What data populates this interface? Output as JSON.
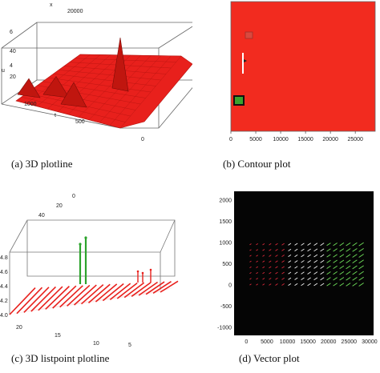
{
  "captions": {
    "a": "(a)  3D plotline",
    "b": "(b)  Contour plot",
    "c": "(c)  3D listpoint plotline",
    "d": "(d)  Vector plot"
  },
  "chart_data": [
    {
      "panel": "a",
      "type": "area",
      "tick_labels": {
        "back_axis": [
          "x",
          "20000"
        ],
        "vertical_axis": [
          "6",
          "4",
          "40",
          "20"
        ],
        "vertical_axis_label": "u",
        "depth_axis": [
          "1000",
          "500",
          "0"
        ],
        "depth_axis_label": "t",
        "right_axis": [
          "0"
        ]
      },
      "surface_color": "#e8201c",
      "peaks": [
        {
          "label": "left",
          "relative_height": 0.22
        },
        {
          "label": "middle-left",
          "relative_height": 0.25
        },
        {
          "label": "middle",
          "relative_height": 0.3
        },
        {
          "label": "tall-right",
          "relative_height": 0.7
        }
      ]
    },
    {
      "panel": "b",
      "type": "heatmap",
      "x_ticks": [
        0,
        5000,
        10000,
        15000,
        20000,
        25000
      ],
      "y_ticks": [],
      "xlim": [
        0,
        29000
      ],
      "background_color": "#f22b1f",
      "features": [
        {
          "kind": "small-square",
          "color": "#d94a3f"
        },
        {
          "kind": "white-streak",
          "color": "#ffffff"
        },
        {
          "kind": "green-square",
          "color": "#3aa32e"
        }
      ]
    },
    {
      "panel": "c",
      "type": "scatter",
      "tick_labels": {
        "top_axis": [
          "0",
          "20",
          "40"
        ],
        "vertical_axis": [
          4.0,
          4.2,
          4.4,
          4.6,
          4.8
        ],
        "depth_axis": [
          "20",
          "15",
          "10",
          "5"
        ]
      },
      "floor_line_count": 22,
      "line_color": "#e8201c",
      "spike_colors": [
        "#2ca32c",
        "#e8201c"
      ],
      "green_spikes": 2,
      "red_spikes": 3
    },
    {
      "panel": "d",
      "type": "scatter",
      "x_ticks": [
        0,
        5000,
        10000,
        15000,
        20000,
        25000,
        30000
      ],
      "y_ticks": [
        -1000,
        -500,
        0,
        500,
        1000,
        1500,
        2000
      ],
      "xlim": [
        -3000,
        31000
      ],
      "ylim": [
        -1200,
        2200
      ],
      "background_color": "#050505",
      "arrow_grid": {
        "columns": 18,
        "rows": 8,
        "x_start": 1000,
        "x_end": 28000,
        "y_start": 0,
        "y_end": 950
      },
      "arrow_colors": [
        "#d8283a",
        "#f0f0f0",
        "#6fe05a"
      ]
    }
  ]
}
